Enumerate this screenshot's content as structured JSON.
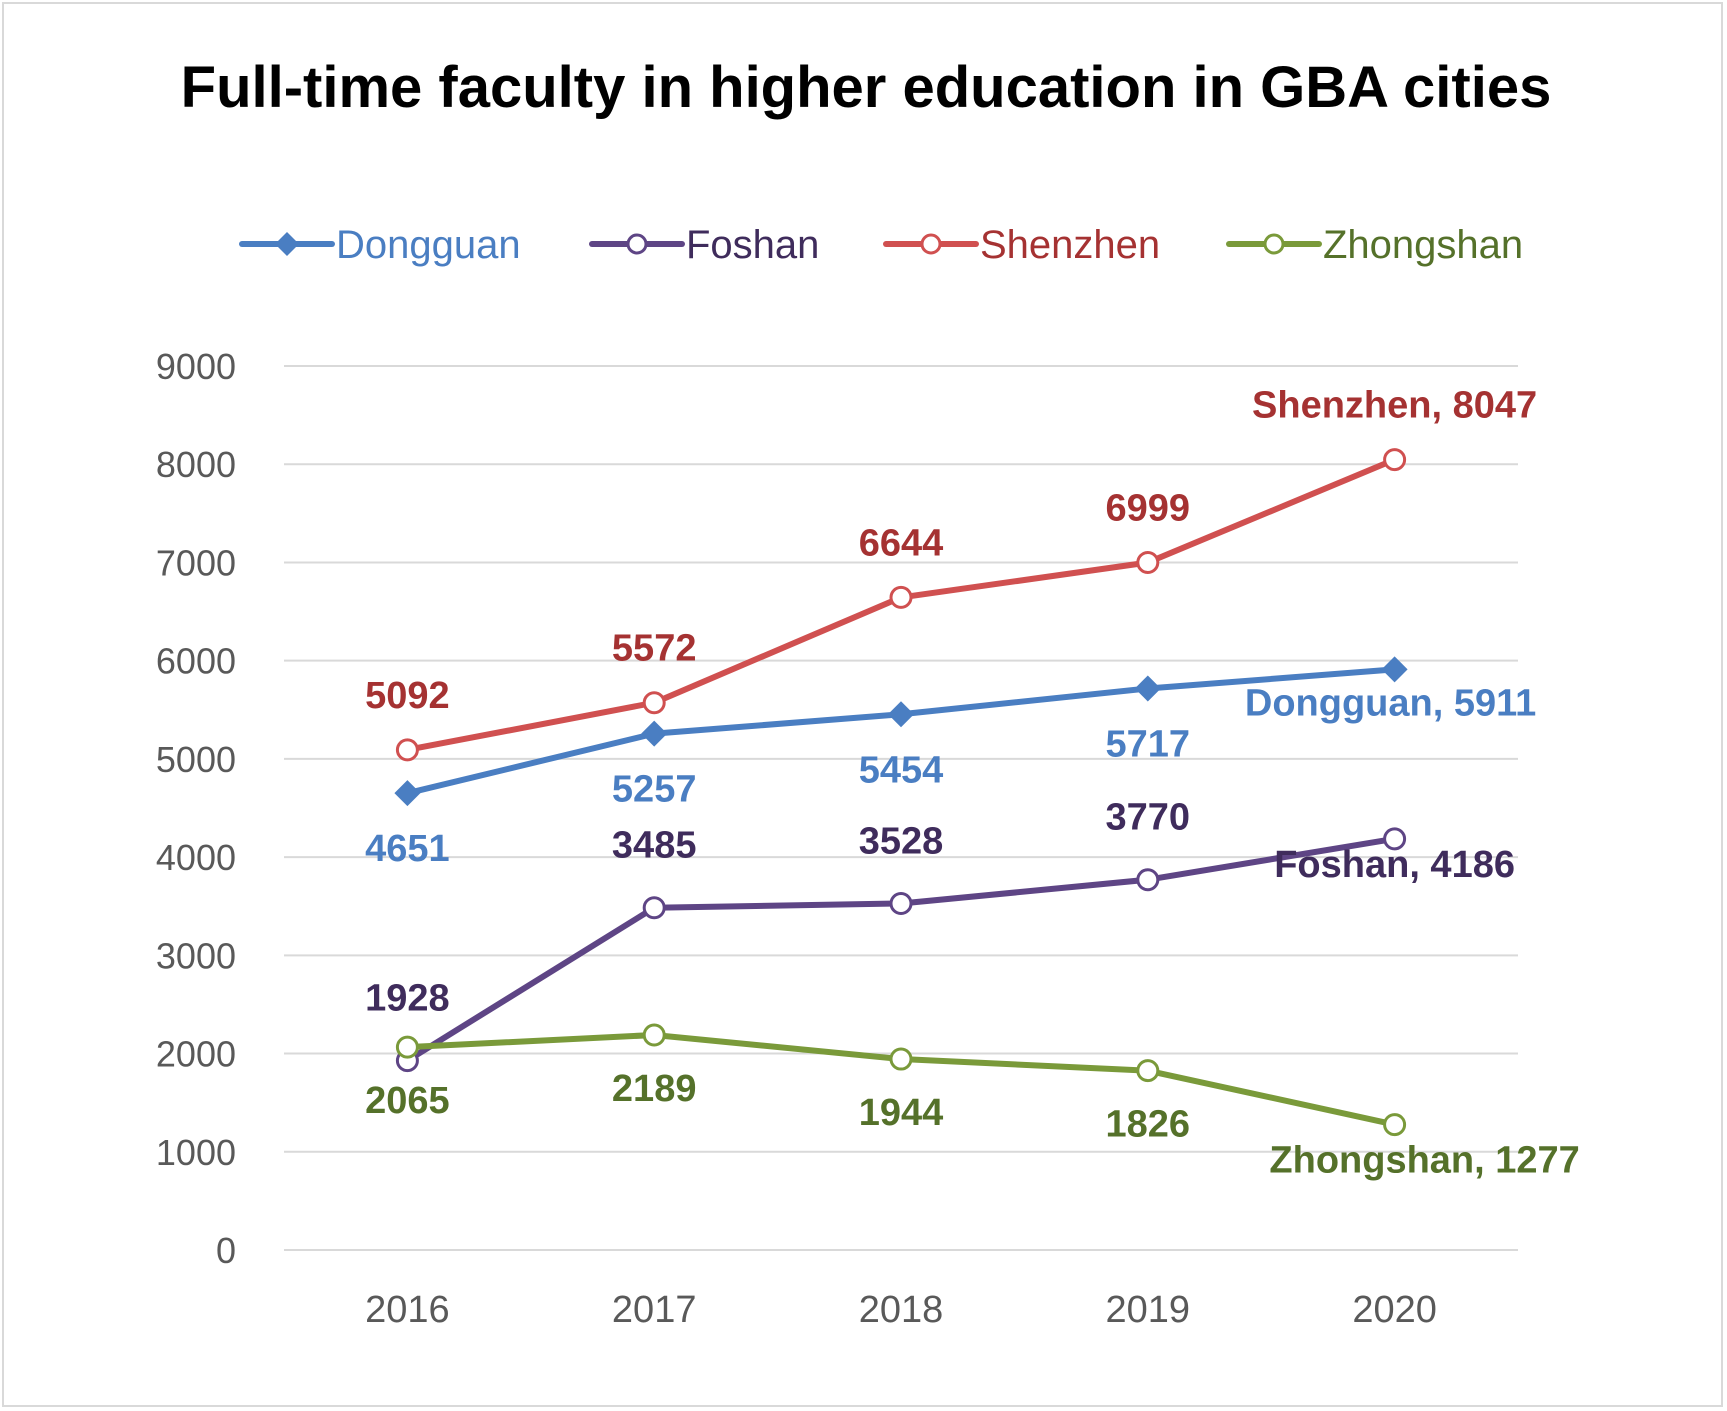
{
  "chart_data": {
    "type": "line",
    "title": "Full-time faculty in higher education in GBA cities",
    "xlabel": "",
    "ylabel": "",
    "categories": [
      "2016",
      "2017",
      "2018",
      "2019",
      "2020"
    ],
    "ylim": [
      0,
      9000
    ],
    "yticks": [
      "0",
      "1000",
      "2000",
      "3000",
      "4000",
      "5000",
      "6000",
      "7000",
      "8000",
      "9000"
    ],
    "grid": true,
    "legend_position": "top",
    "series": [
      {
        "name": "Dongguan",
        "color": "#4A7EC2",
        "label_color": "#4A7EC2",
        "marker": "diamond",
        "values": [
          4651,
          5257,
          5454,
          5717,
          5911
        ],
        "labels": [
          "4651",
          "5257",
          "5454",
          "5717",
          "Dongguan, 5911"
        ]
      },
      {
        "name": "Foshan",
        "color": "#5E4585",
        "label_color": "#3F2C5C",
        "marker": "circle-open",
        "values": [
          1928,
          3485,
          3528,
          3770,
          4186
        ],
        "labels": [
          "1928",
          "3485",
          "3528",
          "3770",
          "Foshan, 4186"
        ]
      },
      {
        "name": "Shenzhen",
        "color": "#D05050",
        "label_color": "#A53232",
        "marker": "circle-open",
        "values": [
          5092,
          5572,
          6644,
          6999,
          8047
        ],
        "labels": [
          "5092",
          "5572",
          "6644",
          "6999",
          "Shenzhen, 8047"
        ]
      },
      {
        "name": "Zhongshan",
        "color": "#7A9A3A",
        "label_color": "#55712A",
        "marker": "circle-open",
        "values": [
          2065,
          2189,
          1944,
          1826,
          1277
        ],
        "labels": [
          "2065",
          "2189",
          "1944",
          "1826",
          "Zhongshan, 1277"
        ]
      }
    ]
  }
}
